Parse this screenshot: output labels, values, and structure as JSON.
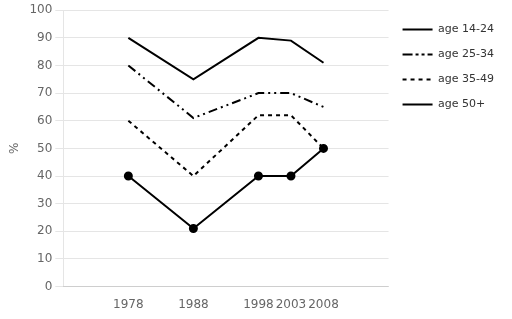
{
  "chart_data": {
    "type": "line",
    "y_label": "%",
    "x": [
      1978,
      1988,
      1998,
      2003,
      2008
    ],
    "series": [
      {
        "name": "age 14-24",
        "color": "#000000",
        "line_style": "solid",
        "marker": "none",
        "values": [
          90,
          75,
          90,
          89,
          81
        ]
      },
      {
        "name": "age 25-34",
        "color": "#000000",
        "line_style": "dashdotdot",
        "marker": "none",
        "values": [
          80,
          61,
          70,
          70,
          65
        ]
      },
      {
        "name": "age 35-49",
        "color": "#000000",
        "line_style": "dashed",
        "marker": "none",
        "values": [
          60,
          40,
          62,
          62,
          50
        ]
      },
      {
        "name": "age 50+",
        "color": "#000000",
        "line_style": "solid",
        "marker": "circle",
        "values": [
          40,
          21,
          40,
          40,
          50
        ]
      }
    ],
    "xlim": [
      1968,
      2018
    ],
    "xticks": [
      1978,
      1988,
      1998,
      2003,
      2008
    ],
    "ylim": [
      0,
      100
    ],
    "yticks": [
      0,
      10,
      20,
      30,
      40,
      50,
      60,
      70,
      80,
      90,
      100
    ],
    "grid": "y",
    "legend": "right"
  }
}
